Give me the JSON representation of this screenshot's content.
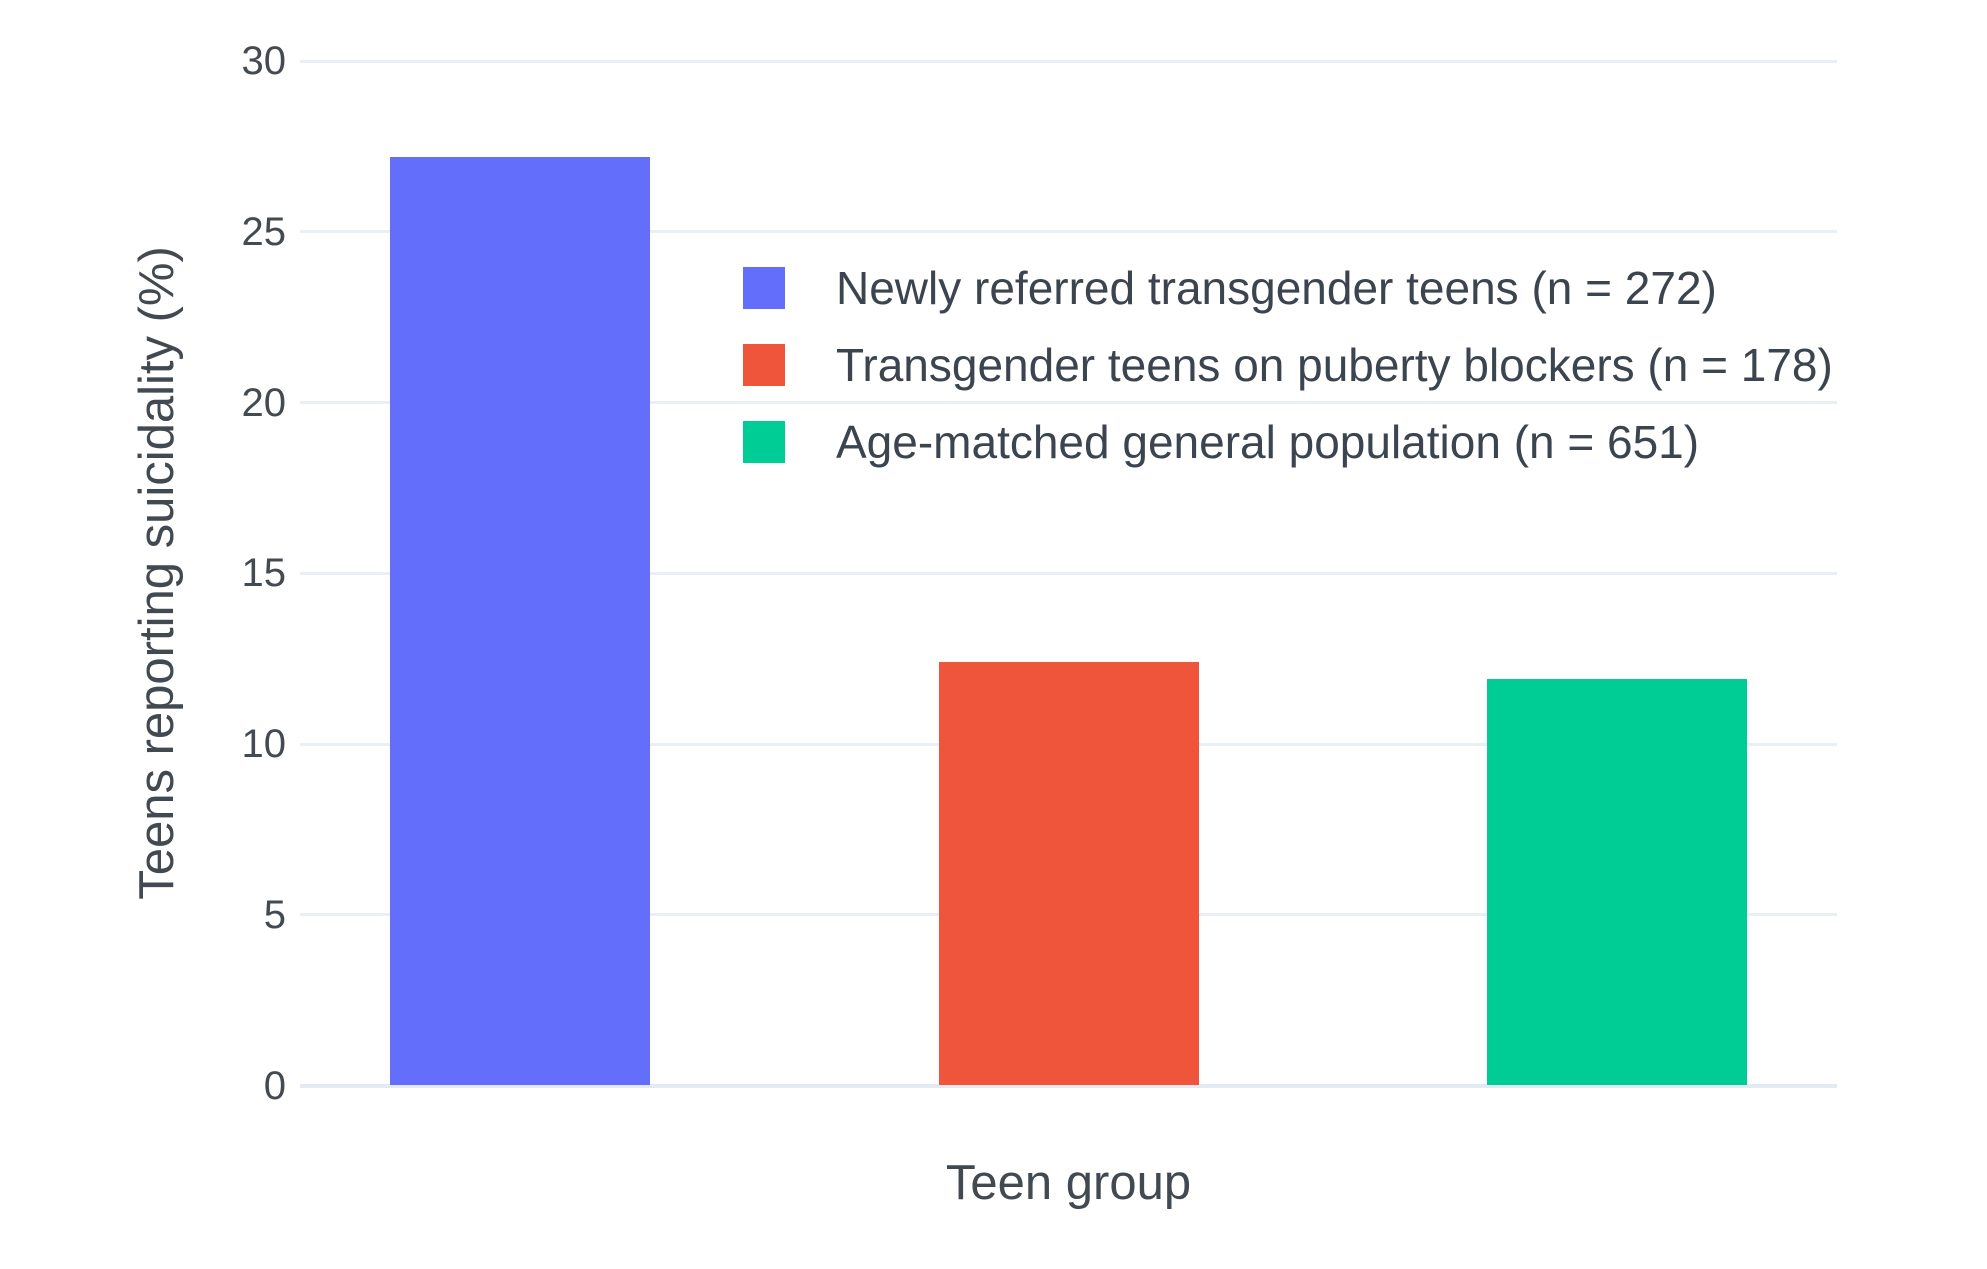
{
  "chart_data": {
    "type": "bar",
    "title": "",
    "xlabel": "Teen group",
    "ylabel": "Teens reporting suicidality (%)",
    "categories": [
      "Newly referred transgender teens (n = 272)",
      "Transgender teens on puberty blockers (n = 178)",
      "Age-matched general population (n = 651)"
    ],
    "values": [
      27.2,
      12.4,
      11.9
    ],
    "bar_colors": [
      "#636EFA",
      "#EF553B",
      "#00CC96"
    ],
    "ylim": [
      0,
      30
    ],
    "yticks": [
      0,
      5,
      10,
      15,
      20,
      25,
      30
    ],
    "grid": true,
    "gridline_color": "#e9eef7",
    "legend": {
      "position": "inside-top-center",
      "entries": [
        {
          "label": "Newly referred transgender teens (n = 272)",
          "color": "#636EFA"
        },
        {
          "label": "Transgender teens on puberty blockers (n = 178)",
          "color": "#EF553B"
        },
        {
          "label": "Age-matched general population (n = 651)",
          "color": "#00CC96"
        }
      ]
    }
  }
}
